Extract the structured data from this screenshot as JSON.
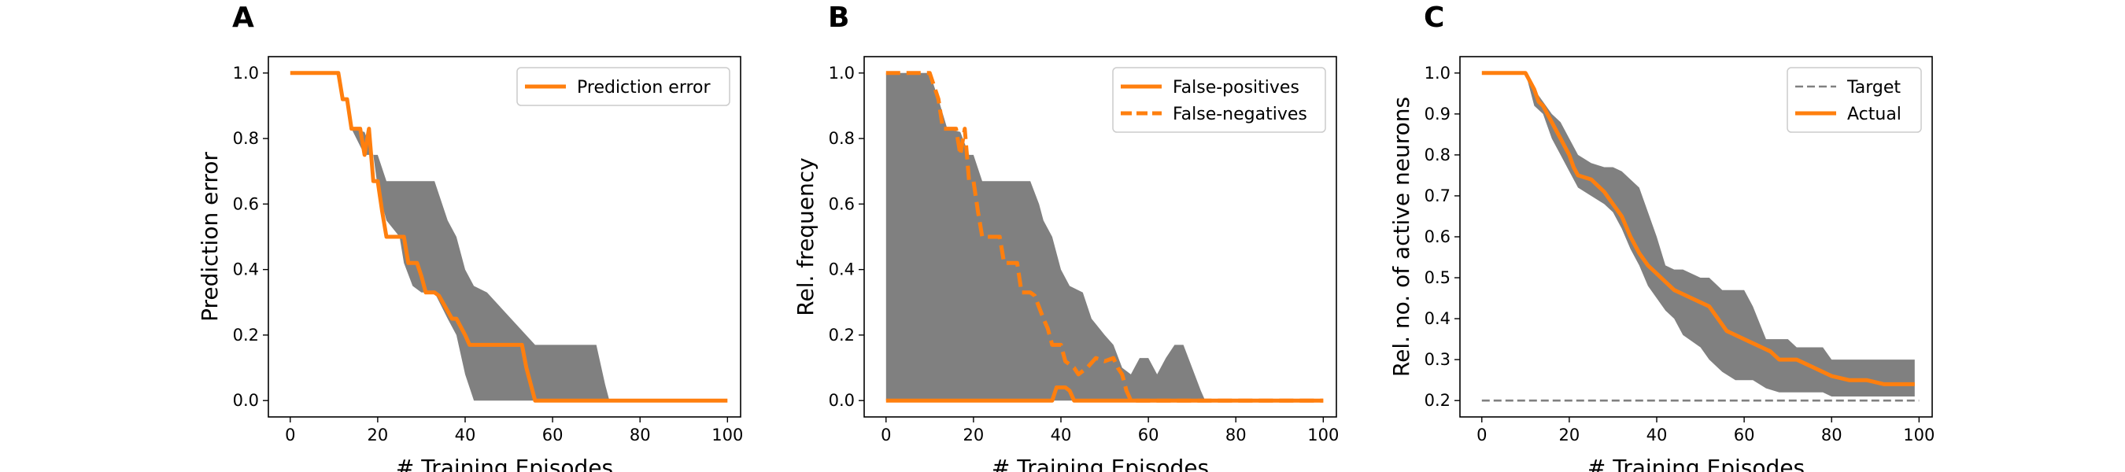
{
  "colors": {
    "accent": "#ff7f0e",
    "band": "#808080",
    "target": "#808080"
  },
  "chart_data": [
    {
      "id": "A",
      "panel_label": "A",
      "type": "line",
      "xlabel": "# Training Episodes",
      "ylabel": "Prediction error",
      "xlim": [
        -5,
        103
      ],
      "ylim": [
        -0.05,
        1.05
      ],
      "xticks": [
        0,
        20,
        40,
        60,
        80,
        100
      ],
      "yticks": [
        0.0,
        0.2,
        0.4,
        0.6,
        0.8,
        1.0
      ],
      "ytick_format": 1,
      "grid": false,
      "legend": "upper right",
      "band": {
        "x": [
          0,
          10,
          12,
          14,
          17,
          19,
          20,
          22,
          25,
          26,
          28,
          30,
          33,
          36,
          38,
          40,
          42,
          45,
          56,
          70,
          72,
          73,
          100
        ],
        "upper": [
          1.0,
          1.0,
          0.92,
          0.83,
          0.82,
          0.75,
          0.75,
          0.67,
          0.67,
          0.67,
          0.67,
          0.67,
          0.67,
          0.55,
          0.5,
          0.4,
          0.35,
          0.33,
          0.17,
          0.17,
          0.05,
          0.0,
          0.0
        ],
        "lower": [
          1.0,
          1.0,
          0.92,
          0.83,
          0.75,
          0.75,
          0.65,
          0.55,
          0.5,
          0.42,
          0.35,
          0.33,
          0.33,
          0.25,
          0.2,
          0.08,
          0.0,
          0.0,
          0.0,
          0.0,
          0.0,
          0.0,
          0.0
        ]
      },
      "series": [
        {
          "name": "Prediction error",
          "style": "solid",
          "x": [
            0,
            11,
            12,
            13,
            14,
            16,
            17,
            18,
            19,
            20,
            21,
            22,
            26,
            27,
            28,
            29,
            30,
            31,
            33,
            34,
            37,
            38,
            40,
            41,
            53,
            54,
            56,
            100
          ],
          "y": [
            1.0,
            1.0,
            0.92,
            0.92,
            0.83,
            0.83,
            0.75,
            0.83,
            0.67,
            0.67,
            0.58,
            0.5,
            0.5,
            0.42,
            0.42,
            0.42,
            0.38,
            0.33,
            0.33,
            0.32,
            0.25,
            0.25,
            0.2,
            0.17,
            0.17,
            0.1,
            0.0,
            0.0
          ]
        }
      ]
    },
    {
      "id": "B",
      "panel_label": "B",
      "type": "line",
      "xlabel": "# Training Episodes",
      "ylabel": "Rel. frequency",
      "xlim": [
        -5,
        103
      ],
      "ylim": [
        -0.05,
        1.05
      ],
      "xticks": [
        0,
        20,
        40,
        60,
        80,
        100
      ],
      "yticks": [
        0.0,
        0.2,
        0.4,
        0.6,
        0.8,
        1.0
      ],
      "ytick_format": 1,
      "grid": false,
      "legend": "upper right",
      "band": {
        "x": [
          0,
          10,
          12,
          14,
          17,
          19,
          20,
          22,
          25,
          30,
          33,
          35,
          36,
          38,
          40,
          42,
          45,
          47,
          50,
          52,
          54,
          56,
          58,
          60,
          62,
          64,
          66,
          68,
          70,
          72,
          73,
          100
        ],
        "upper": [
          1.0,
          1.0,
          0.92,
          0.83,
          0.82,
          0.75,
          0.75,
          0.67,
          0.67,
          0.67,
          0.67,
          0.6,
          0.55,
          0.5,
          0.4,
          0.35,
          0.33,
          0.25,
          0.2,
          0.17,
          0.1,
          0.08,
          0.13,
          0.13,
          0.08,
          0.13,
          0.17,
          0.17,
          0.1,
          0.03,
          0.0,
          0.0
        ],
        "lower": [
          0.0,
          0.0,
          0.0,
          0.0,
          0.0,
          0.0,
          0.0,
          0.0,
          0.0,
          0.0,
          0.0,
          0.0,
          0.0,
          0.0,
          0.0,
          0.0,
          0.0,
          0.0,
          0.0,
          0.0,
          0.0,
          0.0,
          0.0,
          0.0,
          0.0,
          0.0,
          0.0,
          0.0,
          0.0,
          0.0,
          0.0,
          0.0
        ]
      },
      "series": [
        {
          "name": "False-positives",
          "style": "solid",
          "x": [
            0,
            38,
            39,
            40,
            41,
            42,
            43,
            44,
            100
          ],
          "y": [
            0.0,
            0.0,
            0.04,
            0.04,
            0.04,
            0.03,
            0.0,
            0.0,
            0.0
          ]
        },
        {
          "name": "False-negatives",
          "style": "dashed",
          "x": [
            0,
            10,
            12,
            13,
            14,
            16,
            17,
            18,
            19,
            20,
            21,
            22,
            26,
            27,
            30,
            31,
            33,
            34,
            36,
            37,
            38,
            40,
            41,
            43,
            44,
            46,
            48,
            50,
            52,
            53,
            54,
            55,
            56,
            100
          ],
          "y": [
            1.0,
            1.0,
            0.92,
            0.83,
            0.83,
            0.83,
            0.75,
            0.83,
            0.67,
            0.67,
            0.58,
            0.5,
            0.5,
            0.42,
            0.42,
            0.33,
            0.33,
            0.32,
            0.25,
            0.22,
            0.17,
            0.17,
            0.12,
            0.1,
            0.08,
            0.1,
            0.13,
            0.12,
            0.13,
            0.1,
            0.08,
            0.03,
            0.0,
            0.0
          ]
        }
      ]
    },
    {
      "id": "C",
      "panel_label": "C",
      "type": "line",
      "xlabel": "# Training Episodes",
      "ylabel": "Rel. no. of active neurons",
      "xlim": [
        -5,
        103
      ],
      "ylim": [
        0.16,
        1.04
      ],
      "xticks": [
        0,
        20,
        40,
        60,
        80,
        100
      ],
      "yticks": [
        0.2,
        0.3,
        0.4,
        0.5,
        0.6,
        0.7,
        0.8,
        0.9,
        1.0
      ],
      "ytick_format": 1,
      "grid": false,
      "legend": "upper right",
      "band": {
        "x": [
          0,
          10,
          12,
          14,
          16,
          18,
          20,
          22,
          25,
          28,
          30,
          32,
          34,
          36,
          38,
          40,
          42,
          44,
          46,
          50,
          52,
          55,
          58,
          60,
          62,
          65,
          68,
          70,
          72,
          75,
          78,
          80,
          85,
          90,
          95,
          99
        ],
        "upper": [
          1.0,
          1.0,
          0.96,
          0.93,
          0.9,
          0.88,
          0.84,
          0.8,
          0.78,
          0.77,
          0.77,
          0.76,
          0.74,
          0.72,
          0.66,
          0.6,
          0.53,
          0.52,
          0.52,
          0.5,
          0.5,
          0.47,
          0.47,
          0.47,
          0.43,
          0.35,
          0.35,
          0.35,
          0.33,
          0.33,
          0.33,
          0.3,
          0.3,
          0.3,
          0.3,
          0.3
        ],
        "lower": [
          1.0,
          1.0,
          0.92,
          0.9,
          0.84,
          0.8,
          0.76,
          0.72,
          0.7,
          0.68,
          0.66,
          0.62,
          0.57,
          0.53,
          0.48,
          0.45,
          0.42,
          0.4,
          0.36,
          0.33,
          0.3,
          0.27,
          0.25,
          0.25,
          0.25,
          0.23,
          0.22,
          0.22,
          0.22,
          0.22,
          0.22,
          0.21,
          0.21,
          0.21,
          0.21,
          0.21
        ]
      },
      "series": [
        {
          "name": "Target",
          "style": "dashed-thin",
          "x": [
            0,
            100
          ],
          "y": [
            0.2,
            0.2
          ]
        },
        {
          "name": "Actual",
          "style": "solid",
          "x": [
            0,
            10,
            12,
            13,
            14,
            15,
            16,
            17,
            18,
            19,
            20,
            21,
            22,
            25,
            28,
            30,
            32,
            34,
            36,
            38,
            40,
            42,
            44,
            46,
            48,
            50,
            52,
            54,
            56,
            58,
            60,
            62,
            64,
            66,
            68,
            70,
            72,
            74,
            76,
            78,
            80,
            84,
            88,
            92,
            96,
            99
          ],
          "y": [
            1.0,
            1.0,
            0.96,
            0.93,
            0.92,
            0.9,
            0.88,
            0.86,
            0.84,
            0.82,
            0.8,
            0.77,
            0.75,
            0.74,
            0.71,
            0.68,
            0.65,
            0.6,
            0.56,
            0.53,
            0.51,
            0.49,
            0.47,
            0.46,
            0.45,
            0.44,
            0.43,
            0.4,
            0.37,
            0.36,
            0.35,
            0.34,
            0.33,
            0.32,
            0.3,
            0.3,
            0.3,
            0.29,
            0.28,
            0.27,
            0.26,
            0.25,
            0.25,
            0.24,
            0.24,
            0.24
          ]
        }
      ]
    }
  ]
}
